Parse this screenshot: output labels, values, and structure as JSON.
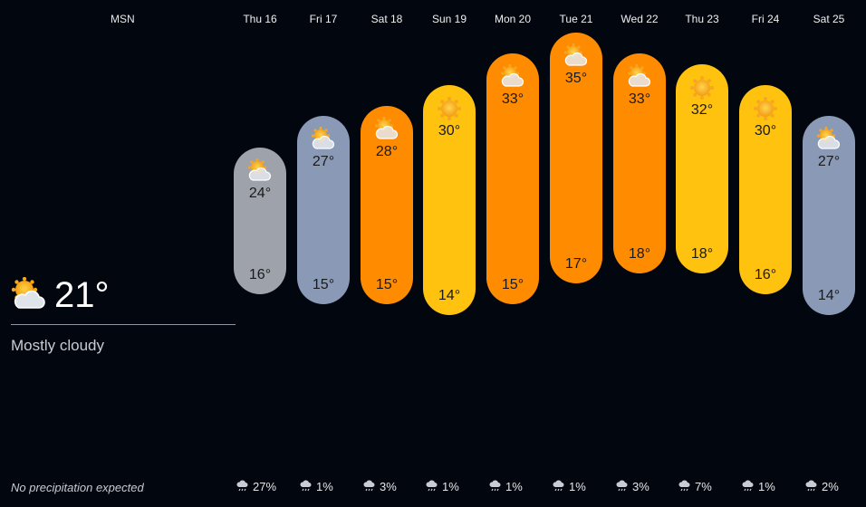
{
  "header": {
    "brand": "MSN"
  },
  "current": {
    "temp": "21°",
    "condition": "Mostly cloudy",
    "icon": "partly-cloudy-icon"
  },
  "precip_summary": "No precipitation expected",
  "colors": {
    "background": "#02060f",
    "gray": "#9ea3ab",
    "blue_gray": "#8a9ab6",
    "orange": "#ff8c00",
    "yellow": "#ffc20e",
    "amber": "#ffb000",
    "mid_orange": "#ff9d1a"
  },
  "days": [
    {
      "label": "Thu 16",
      "high": "24°",
      "low": "16°",
      "precip": "27%",
      "icon": "partly-cloudy-icon",
      "color": "gray"
    },
    {
      "label": "Fri 17",
      "high": "27°",
      "low": "15°",
      "precip": "1%",
      "icon": "partly-cloudy-icon",
      "color": "blue_gray"
    },
    {
      "label": "Sat 18",
      "high": "28°",
      "low": "15°",
      "precip": "3%",
      "icon": "partly-cloudy-icon",
      "color": "orange"
    },
    {
      "label": "Sun 19",
      "high": "30°",
      "low": "14°",
      "precip": "1%",
      "icon": "sun-icon",
      "color": "yellow"
    },
    {
      "label": "Mon 20",
      "high": "33°",
      "low": "15°",
      "precip": "1%",
      "icon": "partly-cloudy-icon",
      "color": "orange"
    },
    {
      "label": "Tue 21",
      "high": "35°",
      "low": "17°",
      "precip": "1%",
      "icon": "partly-cloudy-icon",
      "color": "orange"
    },
    {
      "label": "Wed 22",
      "high": "33°",
      "low": "18°",
      "precip": "3%",
      "icon": "partly-cloudy-icon",
      "color": "orange"
    },
    {
      "label": "Thu 23",
      "high": "32°",
      "low": "18°",
      "precip": "7%",
      "icon": "sun-icon",
      "color": "yellow"
    },
    {
      "label": "Fri 24",
      "high": "30°",
      "low": "16°",
      "precip": "1%",
      "icon": "sun-icon",
      "color": "yellow"
    },
    {
      "label": "Sat 25",
      "high": "27°",
      "low": "14°",
      "precip": "2%",
      "icon": "partly-cloudy-icon",
      "color": "blue_gray"
    }
  ]
}
